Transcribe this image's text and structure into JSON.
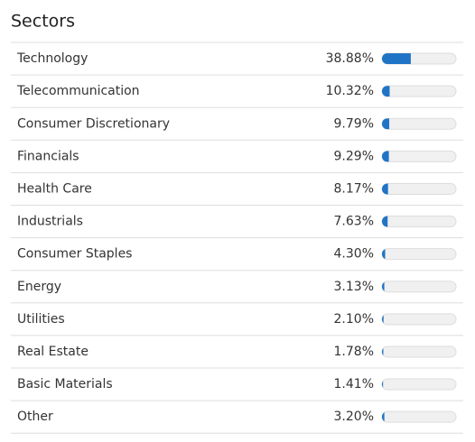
{
  "chart_data": {
    "type": "bar",
    "orientation": "horizontal",
    "title": "Sectors",
    "categories": [
      "Technology",
      "Telecommunication",
      "Consumer Discretionary",
      "Financials",
      "Health Care",
      "Industrials",
      "Consumer Staples",
      "Energy",
      "Utilities",
      "Real Estate",
      "Basic Materials",
      "Other"
    ],
    "values": [
      38.88,
      10.32,
      9.79,
      9.29,
      8.17,
      7.63,
      4.3,
      3.13,
      2.1,
      1.78,
      1.41,
      3.2
    ],
    "value_labels": [
      "38.88%",
      "10.32%",
      "9.79%",
      "9.29%",
      "8.17%",
      "7.63%",
      "4.30%",
      "3.13%",
      "2.10%",
      "1.78%",
      "1.41%",
      "3.20%"
    ],
    "xlim": [
      0,
      100
    ],
    "color": "#1f74c6"
  }
}
